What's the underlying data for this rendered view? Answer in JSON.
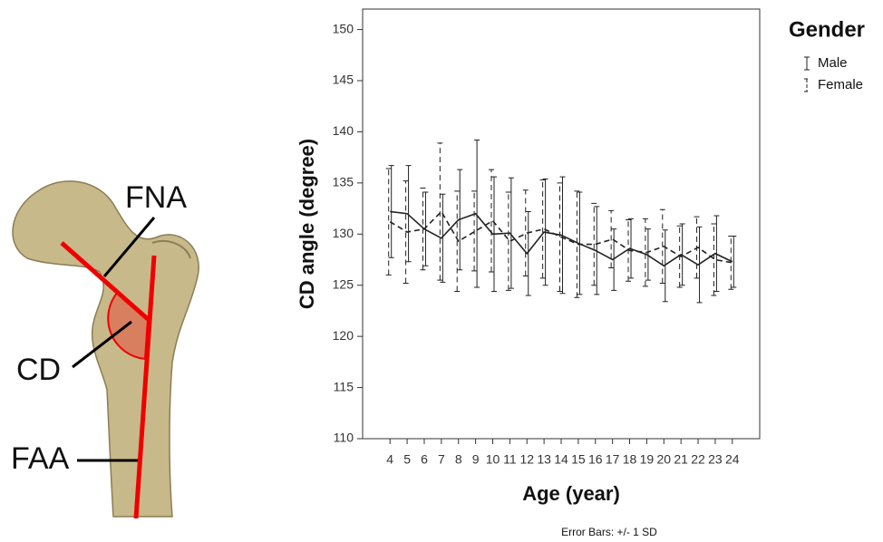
{
  "illustration": {
    "labels": [
      "FNA",
      "CD",
      "FAA"
    ]
  },
  "chart_data": {
    "type": "errorbar-line",
    "y_label": "CD angle (degree)",
    "x_label": "Age (year)",
    "note": "Error Bars: +/- 1 SD",
    "legend_title": "Gender",
    "x": [
      4,
      5,
      6,
      7,
      8,
      9,
      10,
      11,
      12,
      13,
      14,
      15,
      16,
      17,
      18,
      19,
      20,
      21,
      22,
      23,
      24
    ],
    "xlim": [
      2.4,
      25.6
    ],
    "xticks": [
      4,
      5,
      6,
      7,
      8,
      9,
      10,
      11,
      12,
      13,
      14,
      15,
      16,
      17,
      18,
      19,
      20,
      21,
      22,
      23,
      24
    ],
    "ylim": [
      110,
      152
    ],
    "yticks": [
      110,
      115,
      120,
      125,
      130,
      135,
      140,
      145,
      150
    ],
    "series": [
      {
        "name": "Male",
        "color": "#222222",
        "dash": "solid",
        "values": [
          132.2,
          132.0,
          130.5,
          129.6,
          131.4,
          132.0,
          130.0,
          130.1,
          128.1,
          130.2,
          129.9,
          129.1,
          128.4,
          127.5,
          128.6,
          128.0,
          126.9,
          128.0,
          127.0,
          128.1,
          127.3
        ],
        "errors": [
          4.5,
          4.7,
          3.6,
          4.3,
          4.9,
          7.2,
          5.6,
          5.4,
          4.1,
          5.2,
          5.7,
          5.0,
          4.3,
          3.0,
          2.9,
          2.5,
          3.5,
          3.0,
          3.7,
          3.7,
          2.5
        ]
      },
      {
        "name": "Female",
        "color": "#222222",
        "dash": "dashed",
        "values": [
          131.2,
          130.2,
          130.5,
          132.2,
          129.3,
          130.3,
          131.3,
          129.3,
          130.1,
          130.5,
          129.7,
          129.0,
          129.0,
          129.5,
          128.4,
          128.2,
          128.8,
          127.8,
          128.7,
          127.5,
          127.2
        ],
        "errors": [
          5.2,
          5.0,
          4.0,
          6.7,
          4.9,
          3.9,
          5.0,
          4.8,
          4.2,
          4.8,
          5.3,
          5.2,
          4.0,
          2.8,
          3.0,
          3.3,
          3.6,
          3.0,
          3.0,
          3.5,
          2.6
        ]
      }
    ]
  }
}
